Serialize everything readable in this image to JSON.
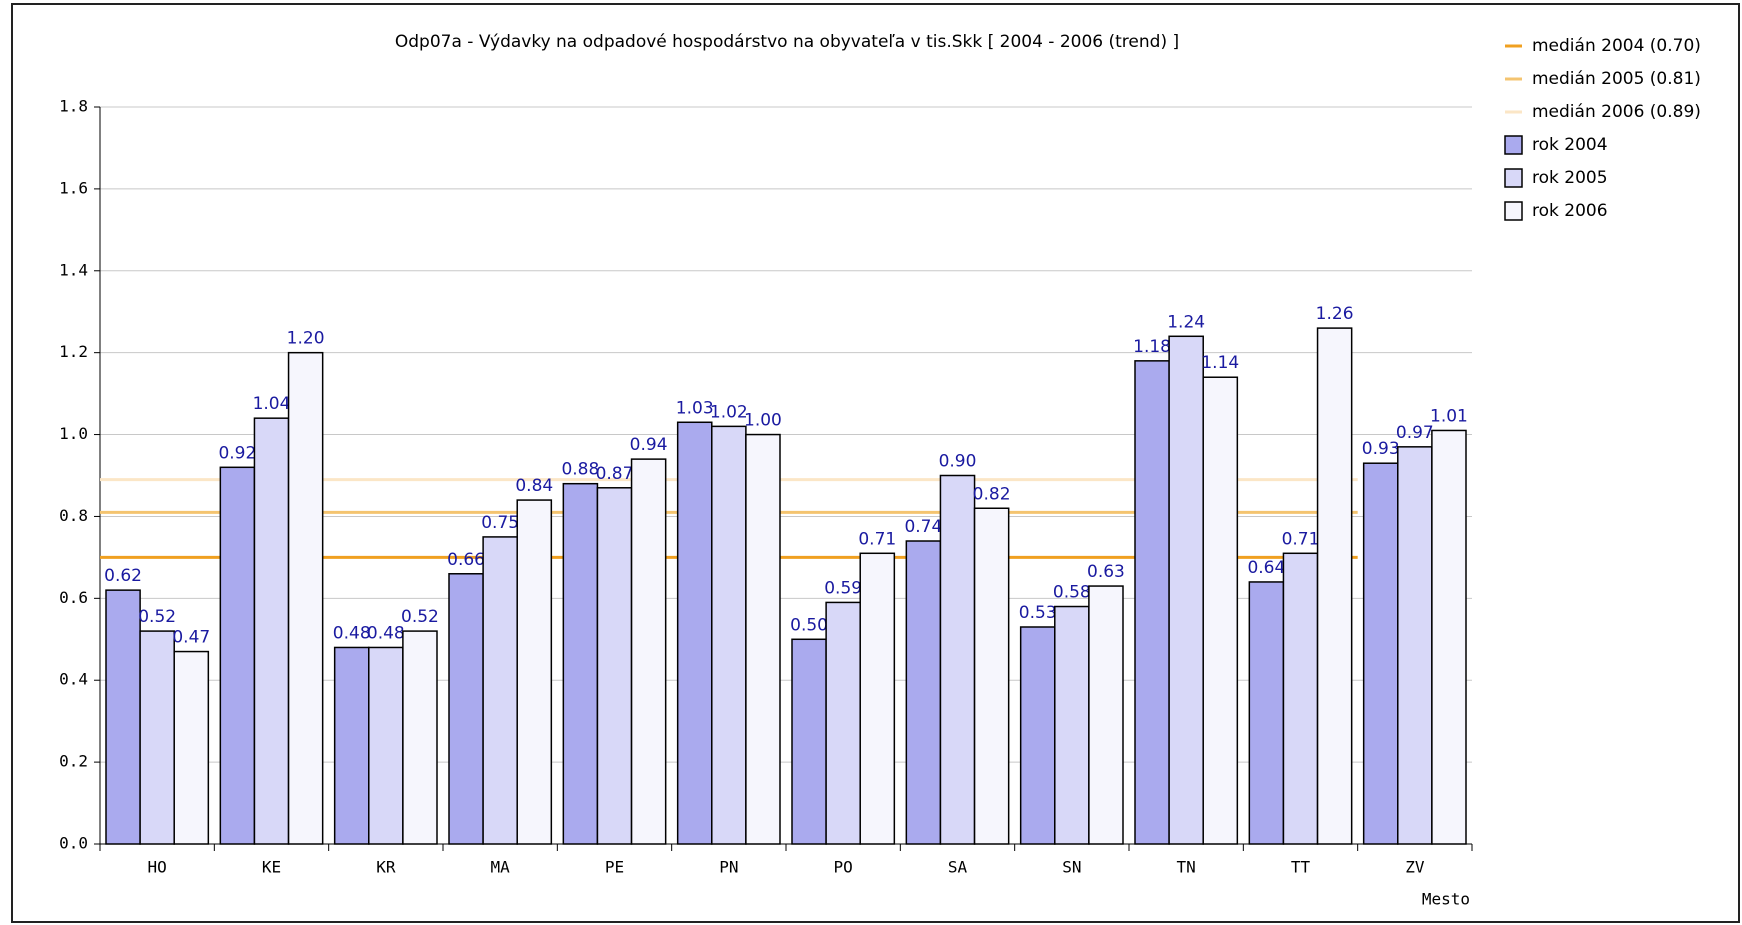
{
  "chart_data": {
    "type": "bar",
    "title": "Odp07a - Výdavky na odpadové hospodárstvo na obyvateľa v tis.Skk [ 2004 - 2006 (trend) ]",
    "x_label": "Mesto",
    "categories": [
      "HO",
      "KE",
      "KR",
      "MA",
      "PE",
      "PN",
      "PO",
      "SA",
      "SN",
      "TN",
      "TT",
      "ZV"
    ],
    "series": [
      {
        "name": "rok 2004",
        "color": "#aaaaee",
        "values": [
          0.62,
          0.92,
          0.48,
          0.66,
          0.88,
          1.03,
          0.5,
          0.74,
          0.53,
          1.18,
          0.64,
          0.93
        ],
        "value_labels": [
          "0.62",
          "0.92",
          "0.48",
          "0.66",
          "0.88",
          "1.03",
          "0.50",
          "0.74",
          "0.53",
          "1.18",
          "0.64",
          "0.93"
        ]
      },
      {
        "name": "rok 2005",
        "color": "#d8d8f8",
        "values": [
          0.52,
          1.04,
          0.48,
          0.75,
          0.87,
          1.02,
          0.59,
          0.9,
          0.58,
          1.24,
          0.71,
          0.97
        ],
        "value_labels": [
          "0.52",
          "1.04",
          "0.48",
          "0.75",
          "0.87",
          "1.02",
          "0.59",
          "0.90",
          "0.58",
          "1.24",
          "0.71",
          "0.97"
        ]
      },
      {
        "name": "rok 2006",
        "color": "#f6f6fd",
        "values": [
          0.47,
          1.2,
          0.52,
          0.84,
          0.94,
          1.0,
          0.71,
          0.82,
          0.63,
          1.14,
          1.26,
          1.01
        ],
        "value_labels": [
          "0.47",
          "1.20",
          "0.52",
          "0.84",
          "0.94",
          "1.00",
          "0.71",
          "0.82",
          "0.63",
          "1.14",
          "1.26",
          "1.01"
        ]
      }
    ],
    "reference_lines": [
      {
        "name": "medián 2004 (0.70)",
        "value": 0.7,
        "color": "#f0a020"
      },
      {
        "name": "medián 2005 (0.81)",
        "value": 0.81,
        "color": "#f4c470"
      },
      {
        "name": "medián 2006 (0.89)",
        "value": 0.89,
        "color": "#fbe6c6"
      }
    ],
    "ylim": [
      0,
      1.8
    ],
    "yticks": [
      {
        "value": 0,
        "label": "0.0"
      },
      {
        "value": 0.2,
        "label": "0.2"
      },
      {
        "value": 0.4,
        "label": "0.4"
      },
      {
        "value": 0.6,
        "label": "0.6"
      },
      {
        "value": 0.8,
        "label": "0.8"
      },
      {
        "value": 1.0,
        "label": "1.0"
      },
      {
        "value": 1.2,
        "label": "1.2"
      },
      {
        "value": 1.4,
        "label": "1.4"
      },
      {
        "value": 1.6,
        "label": "1.6"
      },
      {
        "value": 1.8,
        "label": "1.8"
      }
    ],
    "grid": true
  }
}
